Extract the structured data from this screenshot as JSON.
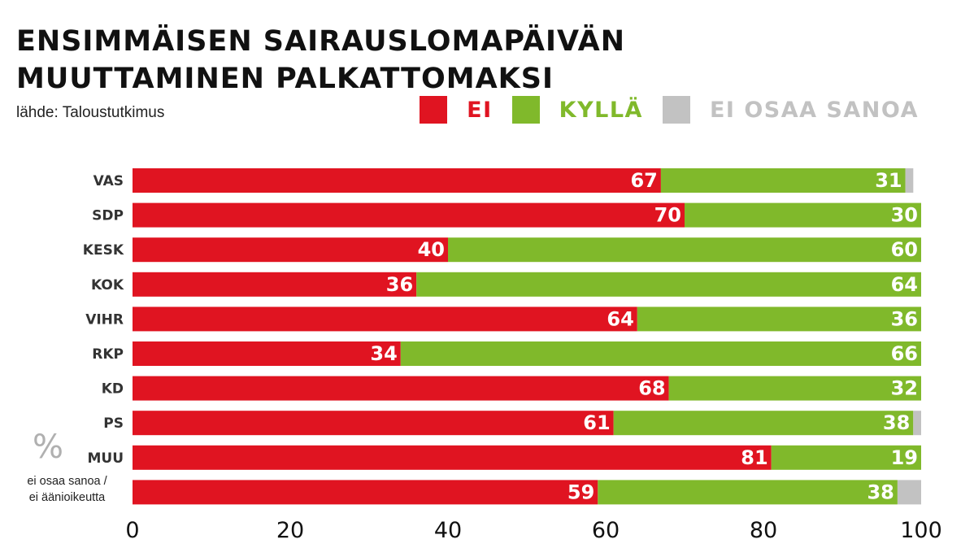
{
  "title": "ENSIMMÄISEN SAIRAUSLOMAPÄIVÄN MUUTTAMINEN PALKATTOMAKSI",
  "source": "lähde: Taloustutkimus",
  "unit_symbol": "%",
  "note_lines": [
    "ei osaa sanoa /",
    "ei äänioikeutta"
  ],
  "legend": [
    {
      "label": "EI",
      "color": "#e01421"
    },
    {
      "label": "KYLLÄ",
      "color": "#80b92b"
    },
    {
      "label": "EI OSAA SANOA",
      "color": "#c2c2c2"
    }
  ],
  "chart_data": {
    "type": "bar",
    "orientation": "horizontal",
    "stacked": true,
    "title": "ENSIMMÄISEN SAIRAUSLOMAPÄIVÄN MUUTTAMINEN PALKATTOMAKSI",
    "xlabel": "%",
    "ylabel": "",
    "xlim": [
      0,
      100
    ],
    "xticks": [
      0,
      20,
      40,
      60,
      80,
      100
    ],
    "categories": [
      "VAS",
      "SDP",
      "KESK",
      "KOK",
      "VIHR",
      "RKP",
      "KD",
      "PS",
      "MUU",
      "ei osaa sanoa / ei äänioikeutta"
    ],
    "series": [
      {
        "name": "EI",
        "color": "#e01421",
        "values": [
          67,
          70,
          40,
          36,
          64,
          34,
          68,
          61,
          81,
          59
        ]
      },
      {
        "name": "KYLLÄ",
        "color": "#80b92b",
        "values": [
          31,
          30,
          60,
          64,
          36,
          66,
          32,
          38,
          19,
          38
        ]
      },
      {
        "name": "EI OSAA SANOA",
        "color": "#c2c2c2",
        "values": [
          1,
          0,
          0,
          0,
          0,
          0,
          0,
          1,
          0,
          3
        ]
      }
    ],
    "legend_position": "top-right"
  }
}
